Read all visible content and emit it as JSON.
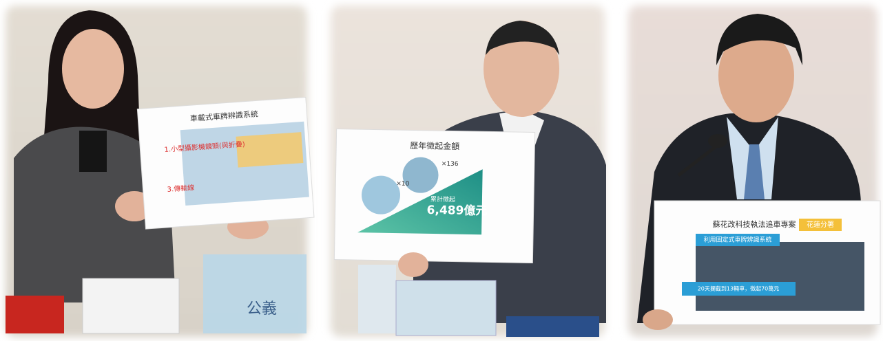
{
  "panels": [
    {
      "sign": {
        "title": "車載式車牌辨識系統",
        "items": [
          "1.小型攝影機鏡頭(與折疊)",
          "3.傳輸線"
        ]
      },
      "gift_text": "公義"
    },
    {
      "sign": {
        "title": "歷年徵起金額",
        "multipliers": [
          "×10",
          "×136"
        ],
        "total_label": "累計徵起",
        "total": "6,489億元"
      }
    },
    {
      "sign": {
        "title": "蘇花改科技執法追車專案",
        "tag": "花蓮分署",
        "subtitle": "利用固定式車牌辨識系統",
        "result": "20天攔截到13輛車，徵起70萬元"
      }
    }
  ]
}
